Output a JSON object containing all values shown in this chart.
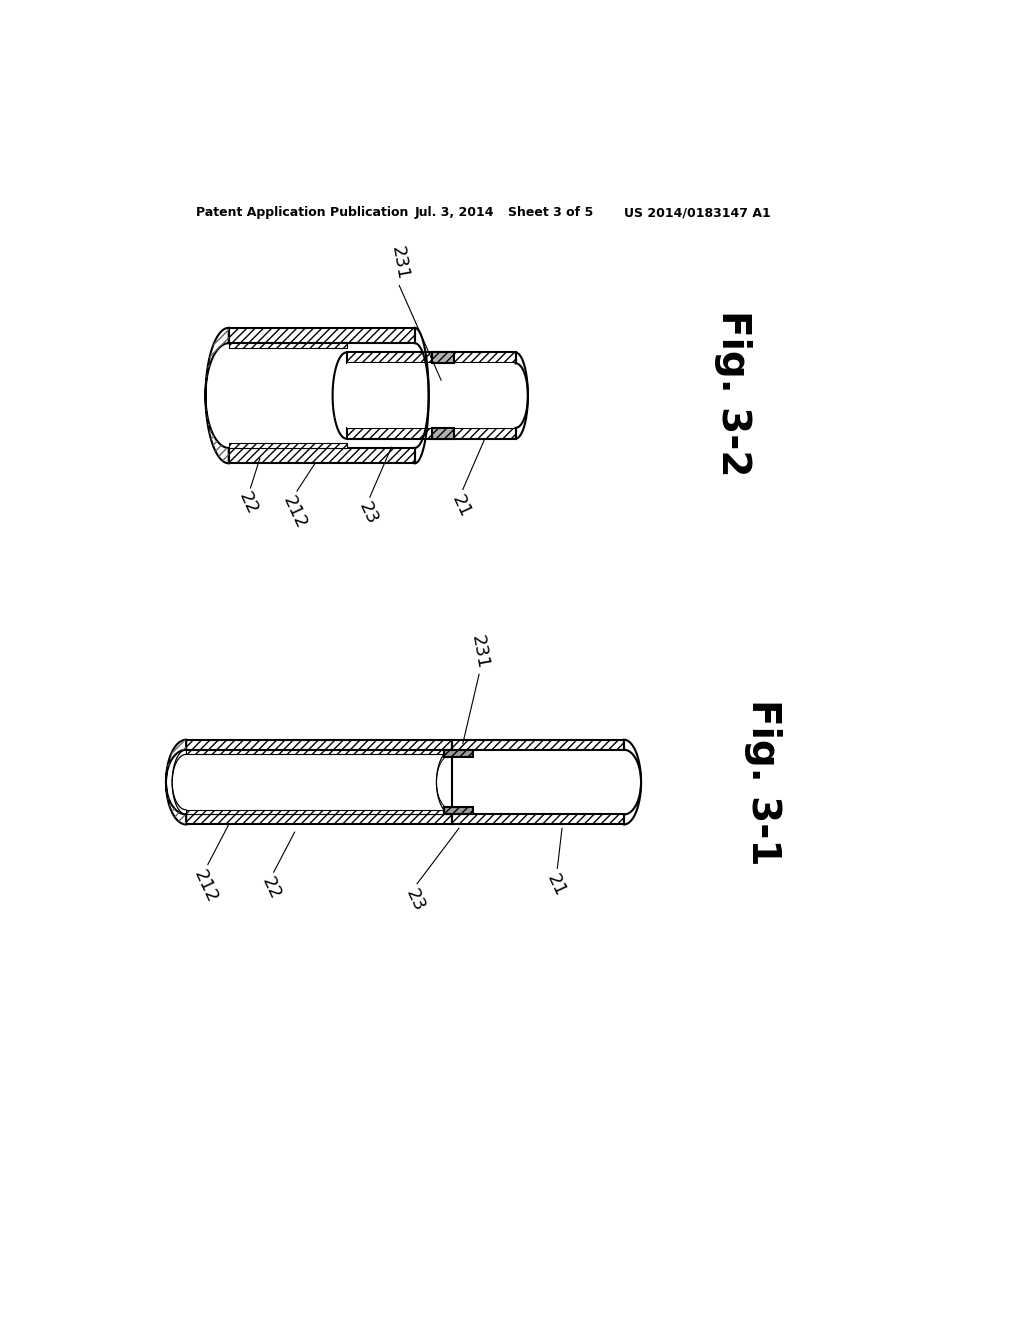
{
  "bg_color": "#ffffff",
  "line_color": "#000000",
  "header_text": "Patent Application Publication",
  "header_date": "Jul. 3, 2014",
  "header_sheet": "Sheet 3 of 5",
  "header_patent": "US 2014/0183147 A1",
  "fig32_label": "Fig. 3-2",
  "fig31_label": "Fig. 3-1"
}
